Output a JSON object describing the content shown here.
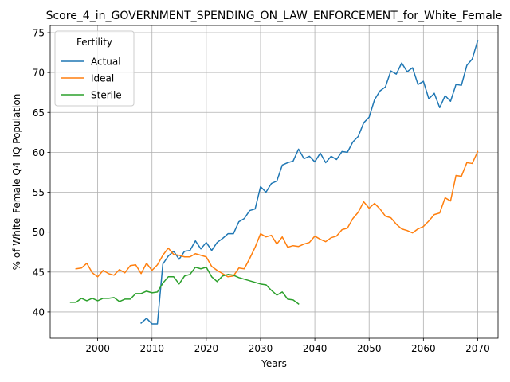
{
  "chart_data": {
    "type": "line",
    "title": "Score_4_in_GOVERNMENT_SPENDING_ON_LAW_ENFORCEMENT_for_White_Female",
    "xlabel": "Years",
    "ylabel": "% of White_Female Q4_IQ Population",
    "xlim": [
      1991.25,
      2073.75
    ],
    "ylim": [
      36.7,
      75.9
    ],
    "xticks": [
      2000,
      2010,
      2020,
      2030,
      2040,
      2050,
      2060,
      2070
    ],
    "yticks": [
      40,
      45,
      50,
      55,
      60,
      65,
      70,
      75
    ],
    "grid": true,
    "legend": {
      "title": "Fertility",
      "placement": "top-left"
    },
    "series": [
      {
        "name": "Actual",
        "color": "#1f77b4",
        "x": [
          2008,
          2009,
          2010,
          2011,
          2012,
          2013,
          2014,
          2015,
          2016,
          2017,
          2018,
          2019,
          2020,
          2021,
          2022,
          2023,
          2024,
          2025,
          2026,
          2027,
          2028,
          2029,
          2030,
          2031,
          2032,
          2033,
          2034,
          2035,
          2036,
          2037,
          2038,
          2039,
          2040,
          2041,
          2042,
          2043,
          2044,
          2045,
          2046,
          2047,
          2048,
          2049,
          2050,
          2051,
          2052,
          2053,
          2054,
          2055,
          2056,
          2057,
          2058,
          2059,
          2060,
          2061,
          2062,
          2063,
          2064,
          2065,
          2066,
          2067,
          2068,
          2069,
          2070
        ],
        "y": [
          38.6,
          39.2,
          38.5,
          38.5,
          46.0,
          47.0,
          47.6,
          46.6,
          47.6,
          47.7,
          48.9,
          47.9,
          48.7,
          47.7,
          48.7,
          49.2,
          49.8,
          49.8,
          51.3,
          51.7,
          52.7,
          52.9,
          55.7,
          55.0,
          56.1,
          56.4,
          58.4,
          58.7,
          58.9,
          60.4,
          59.2,
          59.5,
          58.8,
          59.9,
          58.7,
          59.5,
          59.1,
          60.1,
          60.0,
          61.3,
          62.0,
          63.7,
          64.4,
          66.6,
          67.7,
          68.2,
          70.2,
          69.8,
          71.2,
          70.1,
          70.6,
          68.5,
          68.9,
          66.7,
          67.4,
          65.6,
          67.1,
          66.4,
          68.5,
          68.4,
          70.9,
          71.7,
          74.0
        ]
      },
      {
        "name": "Ideal",
        "color": "#ff7f0e",
        "x": [
          1996,
          1997,
          1998,
          1999,
          2000,
          2001,
          2002,
          2003,
          2004,
          2005,
          2006,
          2007,
          2008,
          2009,
          2010,
          2011,
          2012,
          2013,
          2014,
          2015,
          2016,
          2017,
          2018,
          2019,
          2020,
          2021,
          2022,
          2023,
          2024,
          2025,
          2026,
          2027,
          2028,
          2029,
          2030,
          2031,
          2032,
          2033,
          2034,
          2035,
          2036,
          2037,
          2038,
          2039,
          2040,
          2041,
          2042,
          2043,
          2044,
          2045,
          2046,
          2047,
          2048,
          2049,
          2050,
          2051,
          2052,
          2053,
          2054,
          2055,
          2056,
          2057,
          2058,
          2059,
          2060,
          2061,
          2062,
          2063,
          2064,
          2065,
          2066,
          2067,
          2068,
          2069,
          2070
        ],
        "y": [
          45.4,
          45.5,
          46.1,
          44.9,
          44.4,
          45.2,
          44.8,
          44.6,
          45.3,
          44.9,
          45.8,
          45.9,
          44.8,
          46.1,
          45.2,
          45.9,
          47.1,
          48.0,
          47.2,
          47.1,
          46.9,
          46.9,
          47.3,
          47.1,
          46.9,
          45.7,
          45.2,
          44.8,
          44.4,
          44.5,
          45.5,
          45.4,
          46.7,
          48.1,
          49.8,
          49.4,
          49.6,
          48.5,
          49.4,
          48.1,
          48.3,
          48.2,
          48.5,
          48.7,
          49.5,
          49.1,
          48.8,
          49.3,
          49.5,
          50.3,
          50.5,
          51.7,
          52.5,
          53.8,
          53.0,
          53.6,
          52.9,
          52.0,
          51.8,
          51.0,
          50.4,
          50.2,
          49.9,
          50.4,
          50.7,
          51.4,
          52.2,
          52.4,
          54.3,
          53.9,
          57.1,
          57.0,
          58.7,
          58.6,
          60.1
        ]
      },
      {
        "name": "Sterile",
        "color": "#2ca02c",
        "x": [
          1995,
          1996,
          1997,
          1998,
          1999,
          2000,
          2001,
          2002,
          2003,
          2004,
          2005,
          2006,
          2007,
          2008,
          2009,
          2010,
          2011,
          2012,
          2013,
          2014,
          2015,
          2016,
          2017,
          2018,
          2019,
          2020,
          2021,
          2022,
          2023,
          2024,
          2025,
          2026,
          2027,
          2028,
          2029,
          2030,
          2031,
          2032,
          2033,
          2034,
          2035,
          2036,
          2037
        ],
        "y": [
          41.2,
          41.2,
          41.7,
          41.4,
          41.7,
          41.4,
          41.7,
          41.7,
          41.8,
          41.3,
          41.6,
          41.6,
          42.3,
          42.3,
          42.6,
          42.4,
          42.5,
          43.6,
          44.4,
          44.4,
          43.5,
          44.5,
          44.7,
          45.6,
          45.4,
          45.6,
          44.4,
          43.8,
          44.5,
          44.7,
          44.6,
          44.3,
          44.1,
          43.9,
          43.7,
          43.5,
          43.4,
          42.7,
          42.1,
          42.5,
          41.6,
          41.5,
          41.0
        ]
      }
    ]
  }
}
